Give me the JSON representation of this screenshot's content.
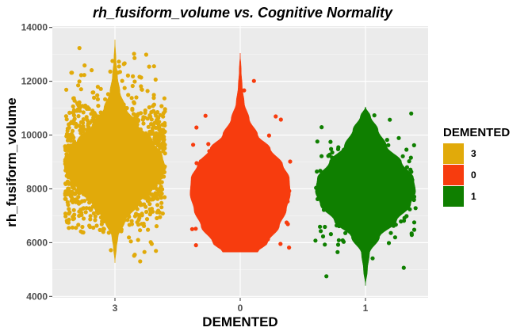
{
  "chart_data": {
    "type": "violin",
    "title": "rh_fusiform_volume vs. Cognitive Normality",
    "xlabel": "DEMENTED",
    "ylabel": "rh_fusiform_volume",
    "categories": [
      "3",
      "0",
      "1"
    ],
    "ylim": [
      3950,
      14050
    ],
    "yticks": [
      4000,
      6000,
      8000,
      10000,
      12000,
      14000
    ],
    "grid": true,
    "legend": {
      "title": "DEMENTED",
      "placement": "right",
      "entries": [
        {
          "label": "3",
          "color": "#E1AA0A"
        },
        {
          "label": "0",
          "color": "#F73C0E"
        },
        {
          "label": "1",
          "color": "#0F7F00"
        }
      ]
    },
    "series": [
      {
        "category": "3",
        "color": "#E1AA0A",
        "n_points": 1500,
        "min": 5250,
        "max": 13550,
        "profile": [
          [
            5250,
            0.0
          ],
          [
            5800,
            0.03
          ],
          [
            6200,
            0.06
          ],
          [
            6800,
            0.2
          ],
          [
            7400,
            0.45
          ],
          [
            8000,
            0.75
          ],
          [
            8500,
            0.95
          ],
          [
            8800,
            1.0
          ],
          [
            9200,
            0.95
          ],
          [
            9800,
            0.75
          ],
          [
            10400,
            0.45
          ],
          [
            11000,
            0.22
          ],
          [
            11600,
            0.1
          ],
          [
            12200,
            0.05
          ],
          [
            12800,
            0.02
          ],
          [
            13550,
            0.0
          ]
        ]
      },
      {
        "category": "0",
        "color": "#F73C0E",
        "n_points": 90,
        "min": 5650,
        "max": 13050,
        "profile": [
          [
            5650,
            0.35
          ],
          [
            6000,
            0.55
          ],
          [
            6600,
            0.78
          ],
          [
            7200,
            0.92
          ],
          [
            7800,
            1.0
          ],
          [
            8400,
            0.98
          ],
          [
            8900,
            0.85
          ],
          [
            9500,
            0.6
          ],
          [
            10000,
            0.35
          ],
          [
            10600,
            0.18
          ],
          [
            11200,
            0.08
          ],
          [
            11800,
            0.04
          ],
          [
            12400,
            0.02
          ],
          [
            13050,
            0.0
          ]
        ]
      },
      {
        "category": "1",
        "color": "#0F7F00",
        "n_points": 200,
        "min": 4400,
        "max": 11050,
        "profile": [
          [
            4400,
            0.0
          ],
          [
            5000,
            0.04
          ],
          [
            5600,
            0.08
          ],
          [
            6200,
            0.28
          ],
          [
            6800,
            0.62
          ],
          [
            7400,
            0.9
          ],
          [
            7900,
            1.0
          ],
          [
            8400,
            0.96
          ],
          [
            9000,
            0.72
          ],
          [
            9600,
            0.42
          ],
          [
            10200,
            0.25
          ],
          [
            10700,
            0.1
          ],
          [
            11050,
            0.0
          ]
        ]
      }
    ]
  }
}
